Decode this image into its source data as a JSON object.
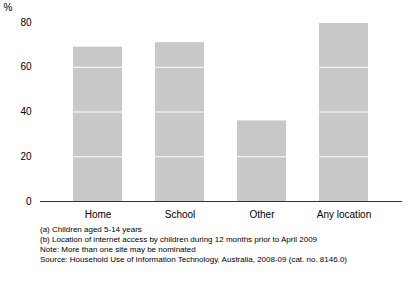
{
  "chart_data": {
    "type": "bar",
    "categories": [
      "Home",
      "School",
      "Other",
      "Any location"
    ],
    "values": [
      69,
      71,
      36,
      80
    ],
    "color": "#c8c8c8",
    "ylabel": "%",
    "ylim": [
      0,
      80
    ],
    "yticks": [
      0,
      20,
      40,
      60,
      80
    ],
    "grid": true,
    "annotations": [
      "(a) Children aged 5-14 years",
      "(b) Location of internet access by children during 12 months prior to April 2009",
      "Note: More than one site may be nominated",
      "Source: Household Use of Information Technology, Australia, 2008-09 (cat. no. 8146.0)"
    ]
  }
}
